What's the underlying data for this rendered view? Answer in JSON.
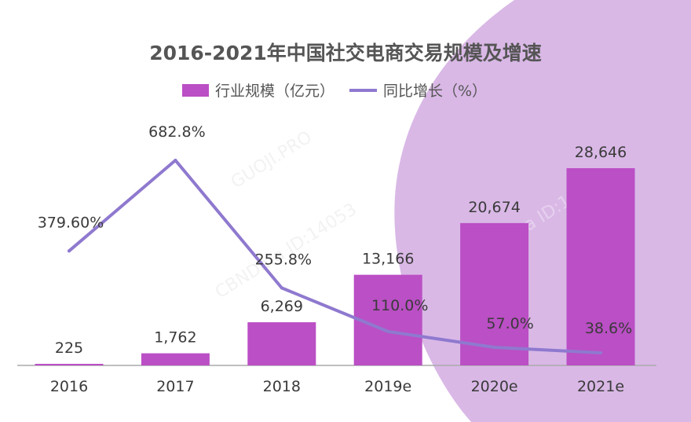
{
  "chart_data": {
    "type": "bar+line",
    "title": "2016-2021年中国社交电商交易规模及增速",
    "categories": [
      "2016",
      "2017",
      "2018",
      "2019e",
      "2020e",
      "2021e"
    ],
    "series": [
      {
        "name": "行业规模（亿元）",
        "type": "bar",
        "values": [
          225,
          1762,
          6269,
          13166,
          20674,
          28646
        ],
        "labels": [
          "225",
          "1,762",
          "6,269",
          "13,166",
          "20,674",
          "28,646"
        ],
        "color": "#bb4fc5"
      },
      {
        "name": "同比增长（%）",
        "type": "line",
        "values": [
          379.6,
          682.8,
          255.8,
          110.0,
          57.0,
          38.6
        ],
        "labels": [
          "379.60%",
          "682.8%",
          "255.8%",
          "110.0%",
          "57.0%",
          "38.6%"
        ],
        "color": "#8f79cf"
      }
    ],
    "legend_position": "top-center",
    "grid": false
  },
  "watermarks": [
    "CBNData ID:14053",
    "GUOJI.PRO"
  ],
  "colors": {
    "background_blob": "#d9b8e6",
    "axis": "#aaaaaa"
  }
}
